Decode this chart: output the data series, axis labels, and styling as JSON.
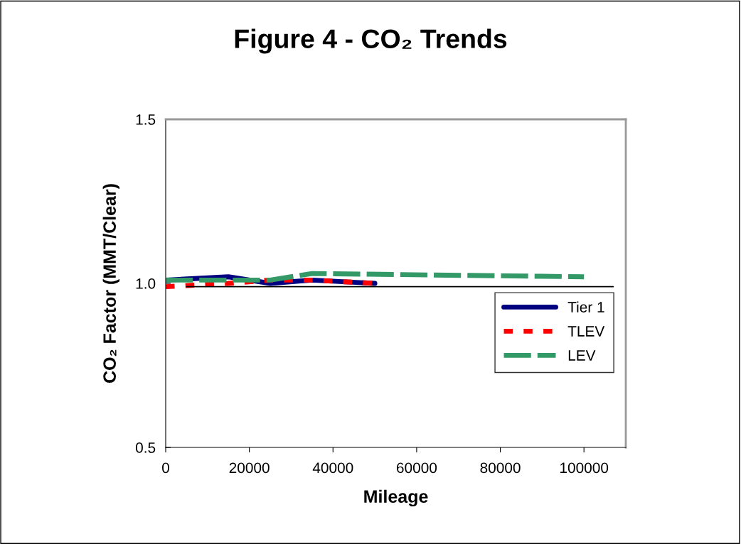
{
  "chart_data": {
    "type": "line",
    "title": "Figure 4 - CO₂ Trends",
    "xlabel": "Mileage",
    "ylabel": "CO₂ Factor (MMT/Clear)",
    "xlim": [
      0,
      110000
    ],
    "xticks": [
      0,
      20000,
      40000,
      60000,
      80000,
      100000
    ],
    "ylim": [
      0.5,
      1.5
    ],
    "yticks": [
      {
        "value": 0.5,
        "label": "0.5"
      },
      {
        "value": 1.0,
        "label": "1.0"
      },
      {
        "value": 1.5,
        "label": "1.5"
      }
    ],
    "grid": false,
    "legend": "right",
    "marker": "none",
    "series": [
      {
        "name": "Tier 1",
        "color": "#000080",
        "line_style": "solid",
        "x": [
          0,
          15000,
          25000,
          35000,
          50000
        ],
        "values": [
          1.01,
          1.02,
          1.0,
          1.01,
          1.0
        ]
      },
      {
        "name": "TLEV",
        "color": "#ff0000",
        "line_style": "dashed",
        "x": [
          0,
          15000,
          25000,
          35000,
          50000
        ],
        "values": [
          0.99,
          1.0,
          1.01,
          1.01,
          1.0
        ]
      },
      {
        "name": "LEV",
        "color": "#339966",
        "line_style": "longdash",
        "x": [
          0,
          15000,
          25000,
          35000,
          100000
        ],
        "values": [
          1.01,
          1.01,
          1.01,
          1.03,
          1.02
        ]
      },
      {
        "color": "#000000",
        "line_style": "solid",
        "x": [
          5000,
          107000
        ],
        "values": [
          0.99,
          0.99
        ]
      }
    ]
  }
}
